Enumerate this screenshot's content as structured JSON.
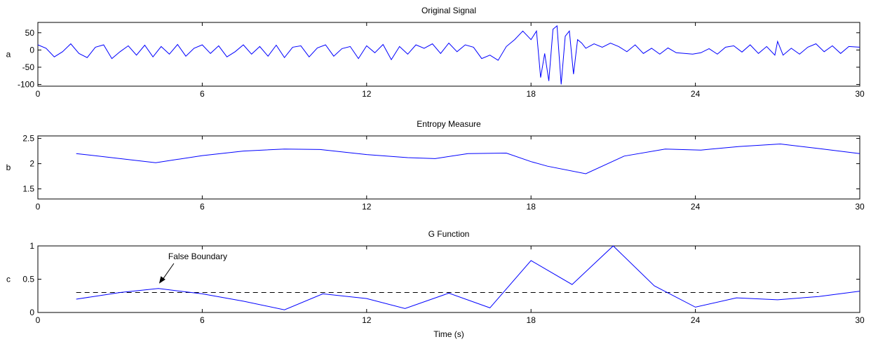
{
  "colors": {
    "background": "#ffffff",
    "axes": "#000000",
    "signal": "#0000ff",
    "threshold": "#000000"
  },
  "chart_data": [
    {
      "type": "line",
      "title": "Original Signal",
      "ylabel": "a",
      "xlabel": "",
      "xlim": [
        0,
        30
      ],
      "ylim": [
        -105,
        80
      ],
      "xticks": [
        0,
        6,
        12,
        18,
        24,
        30
      ],
      "yticks": [
        50,
        0,
        -50,
        -100
      ],
      "grid": false,
      "series": [
        {
          "x": [
            0,
            0.3,
            0.6,
            0.9,
            1.2,
            1.5,
            1.8,
            2.1,
            2.4,
            2.7,
            3.0,
            3.3,
            3.6,
            3.9,
            4.2,
            4.5,
            4.8,
            5.1,
            5.4,
            5.7,
            6.0,
            6.3,
            6.6,
            6.9,
            7.2,
            7.5,
            7.8,
            8.1,
            8.4,
            8.7,
            9.0,
            9.3,
            9.6,
            9.9,
            10.2,
            10.5,
            10.8,
            11.1,
            11.4,
            11.7,
            12.0,
            12.3,
            12.6,
            12.9,
            13.2,
            13.5,
            13.8,
            14.1,
            14.4,
            14.7,
            15.0,
            15.3,
            15.6,
            15.9,
            16.2,
            16.5,
            16.8,
            17.1,
            17.4,
            17.7,
            18.0,
            18.2,
            18.35,
            18.5,
            18.65,
            18.8,
            18.95,
            19.1,
            19.25,
            19.4,
            19.55,
            19.7,
            19.85,
            20.0,
            20.3,
            20.6,
            20.9,
            21.2,
            21.5,
            21.8,
            22.1,
            22.4,
            22.7,
            23.0,
            23.3,
            23.6,
            23.9,
            24.2,
            24.5,
            24.8,
            25.1,
            25.4,
            25.7,
            26.0,
            26.3,
            26.6,
            26.9,
            27.0,
            27.2,
            27.5,
            27.8,
            28.1,
            28.4,
            28.7,
            29.0,
            29.3,
            29.6,
            30.0
          ],
          "values": [
            15,
            5,
            -20,
            -5,
            18,
            -10,
            -22,
            8,
            15,
            -25,
            -5,
            12,
            -15,
            14,
            -20,
            10,
            -12,
            16,
            -18,
            5,
            15,
            -10,
            12,
            -20,
            -5,
            15,
            -12,
            10,
            -18,
            14,
            -22,
            8,
            12,
            -20,
            6,
            15,
            -18,
            4,
            10,
            -25,
            12,
            -8,
            16,
            -28,
            10,
            -12,
            15,
            5,
            18,
            -10,
            20,
            -5,
            15,
            8,
            -25,
            -15,
            -30,
            10,
            30,
            55,
            30,
            55,
            -80,
            -10,
            -90,
            60,
            70,
            -100,
            40,
            55,
            -70,
            30,
            20,
            5,
            18,
            8,
            20,
            10,
            -5,
            15,
            -10,
            5,
            -12,
            6,
            -8,
            -10,
            -12,
            -8,
            4,
            -12,
            8,
            12,
            -6,
            15,
            -10,
            10,
            -15,
            25,
            -15,
            5,
            -12,
            8,
            18,
            -5,
            12,
            -10,
            10,
            8
          ]
        }
      ]
    },
    {
      "type": "line",
      "title": "Entropy Measure",
      "ylabel": "b",
      "xlabel": "",
      "xlim": [
        0,
        30
      ],
      "ylim": [
        1.3,
        2.55
      ],
      "xticks": [
        0,
        6,
        12,
        18,
        24,
        30
      ],
      "yticks": [
        2.5,
        2,
        1.5
      ],
      "grid": false,
      "series": [
        {
          "x": [
            1.4,
            4.3,
            6.0,
            7.5,
            9.0,
            10.3,
            12.0,
            13.5,
            14.5,
            15.7,
            17.1,
            18.0,
            18.6,
            20.0,
            21.4,
            22.9,
            24.2,
            25.6,
            27.1,
            28.5,
            30.0
          ],
          "values": [
            2.2,
            2.02,
            2.16,
            2.25,
            2.29,
            2.28,
            2.18,
            2.12,
            2.1,
            2.2,
            2.21,
            2.04,
            1.95,
            1.8,
            2.15,
            2.29,
            2.27,
            2.34,
            2.39,
            2.3,
            2.2
          ]
        }
      ]
    },
    {
      "type": "line",
      "title": "G Function",
      "ylabel": "c",
      "xlabel": "Time (s)",
      "xlim": [
        0,
        30
      ],
      "ylim": [
        0,
        1
      ],
      "xticks": [
        0,
        6,
        12,
        18,
        24,
        30
      ],
      "yticks": [
        1,
        0.5,
        0
      ],
      "grid": false,
      "annotation": {
        "text": "False Boundary",
        "x": 4.4,
        "y": 0.36
      },
      "threshold": {
        "y": 0.3,
        "x0": 1.4,
        "x1": 28.5
      },
      "series": [
        {
          "x": [
            1.4,
            3.0,
            4.4,
            6.0,
            7.5,
            9.0,
            10.4,
            12.0,
            13.4,
            15.0,
            16.5,
            18.0,
            19.5,
            21.0,
            22.5,
            24.0,
            25.5,
            27.0,
            28.5,
            30.0
          ],
          "values": [
            0.2,
            0.3,
            0.36,
            0.28,
            0.17,
            0.04,
            0.28,
            0.21,
            0.06,
            0.29,
            0.07,
            0.78,
            0.42,
            1.0,
            0.4,
            0.08,
            0.22,
            0.19,
            0.24,
            0.32
          ]
        }
      ]
    }
  ]
}
